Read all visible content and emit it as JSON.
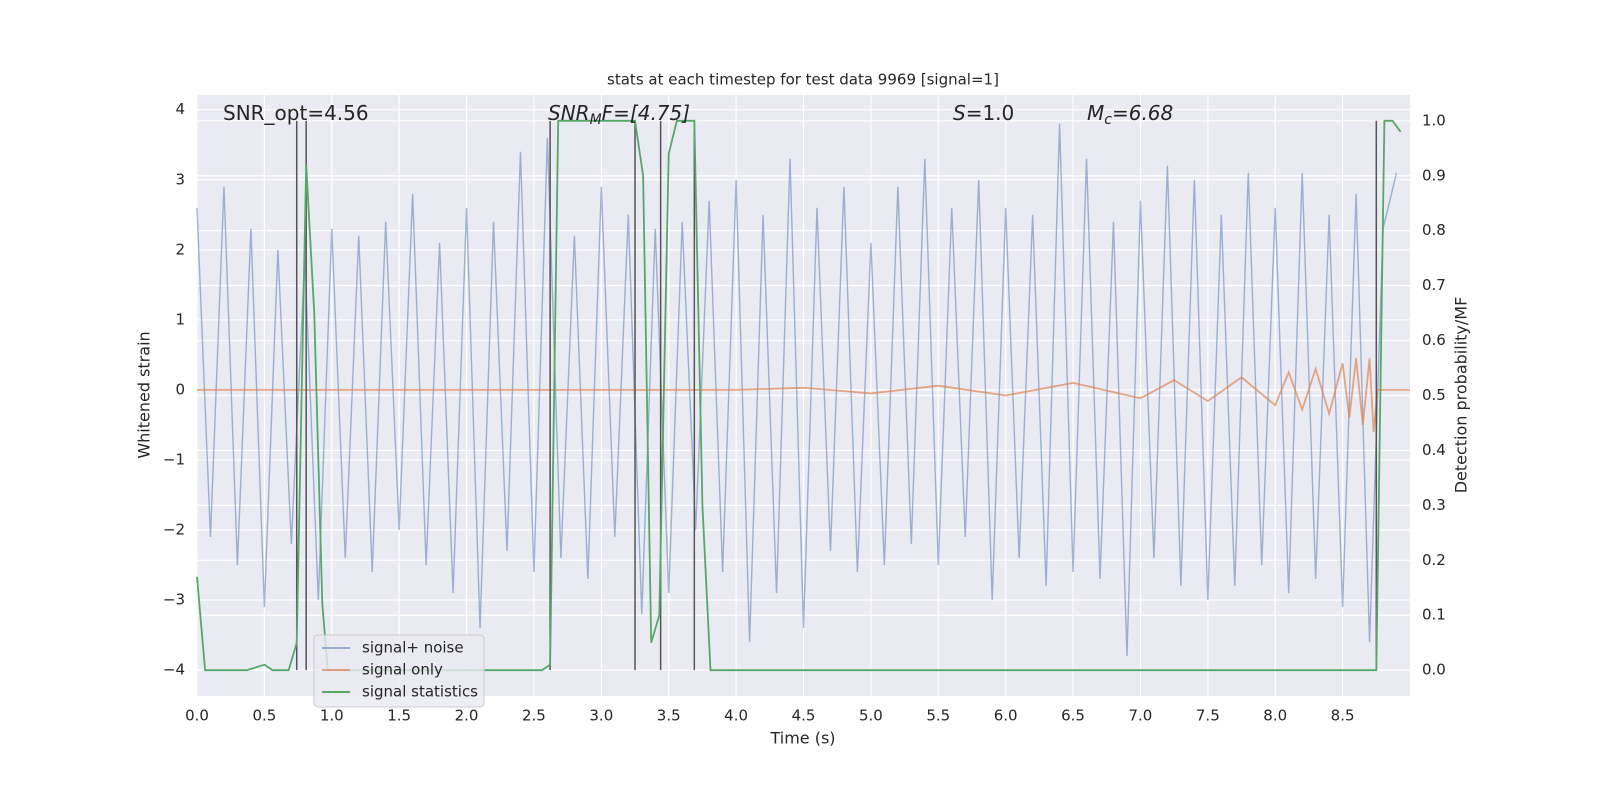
{
  "chart_data": {
    "type": "line",
    "title": "stats at each timestep for test data 9969 [signal=1]",
    "xlabel": "Time (s)",
    "ylabel": "Whitened strain",
    "y2label": "Detection probability/MF",
    "xlim": [
      0,
      9.0
    ],
    "ylim": [
      -4.37,
      4.21
    ],
    "y2lim": [
      -0.047,
      1.047
    ],
    "grid": true,
    "xticks": [
      {
        "value": 0,
        "label": "0.0"
      },
      {
        "value": 0.5,
        "label": "0.5"
      },
      {
        "value": 1,
        "label": "1.0"
      },
      {
        "value": 1.5,
        "label": "1.5"
      },
      {
        "value": 2,
        "label": "2.0"
      },
      {
        "value": 2.5,
        "label": "2.5"
      },
      {
        "value": 3,
        "label": "3.0"
      },
      {
        "value": 3.5,
        "label": "3.5"
      },
      {
        "value": 4,
        "label": "4.0"
      },
      {
        "value": 4.5,
        "label": "4.5"
      },
      {
        "value": 5,
        "label": "5.0"
      },
      {
        "value": 5.5,
        "label": "5.5"
      },
      {
        "value": 6,
        "label": "6.0"
      },
      {
        "value": 6.5,
        "label": "6.5"
      },
      {
        "value": 7,
        "label": "7.0"
      },
      {
        "value": 7.5,
        "label": "7.5"
      },
      {
        "value": 8,
        "label": "8.0"
      },
      {
        "value": 8.5,
        "label": "8.5"
      }
    ],
    "yticks": [
      {
        "value": -4,
        "label": "−4"
      },
      {
        "value": -3,
        "label": "−3"
      },
      {
        "value": -2,
        "label": "−2"
      },
      {
        "value": -1,
        "label": "−1"
      },
      0,
      1,
      2,
      3,
      4
    ],
    "y2ticks": [
      {
        "value": 0,
        "label": "0.0"
      },
      {
        "value": 0.1,
        "label": "0.1"
      },
      {
        "value": 0.2,
        "label": "0.2"
      },
      {
        "value": 0.3,
        "label": "0.3"
      },
      {
        "value": 0.4,
        "label": "0.4"
      },
      {
        "value": 0.5,
        "label": "0.5"
      },
      {
        "value": 0.6,
        "label": "0.6"
      },
      {
        "value": 0.7,
        "label": "0.7"
      },
      {
        "value": 0.8,
        "label": "0.8"
      },
      {
        "value": 0.9,
        "label": "0.9"
      },
      {
        "value": 1,
        "label": "1.0"
      }
    ],
    "annotations": [
      {
        "base": "SNR_opt=4.56"
      },
      {
        "base": "SNR",
        "sub": "M",
        "rest": "F=[4.75]"
      },
      {
        "base": "S",
        "rest": "=1.0"
      },
      {
        "base": "M",
        "sub": "c",
        "rest": "=6.68"
      }
    ],
    "vertical_lines": [
      0.74,
      0.81,
      2.62,
      3.25,
      3.44,
      3.69,
      8.75
    ],
    "vertical_line_color": "#555555",
    "series": [
      {
        "name": "signal+ noise",
        "color": "#4c72b0",
        "x": [
          0.0,
          0.1,
          0.2,
          0.3,
          0.4,
          0.5,
          0.6,
          0.7,
          0.8,
          0.9,
          1.0,
          1.1,
          1.2,
          1.3,
          1.4,
          1.5,
          1.6,
          1.7,
          1.8,
          1.9,
          2.0,
          2.1,
          2.2,
          2.3,
          2.4,
          2.5,
          2.6,
          2.7,
          2.8,
          2.9,
          3.0,
          3.1,
          3.2,
          3.3,
          3.4,
          3.5,
          3.6,
          3.7,
          3.8,
          3.9,
          4.0,
          4.1,
          4.2,
          4.3,
          4.4,
          4.5,
          4.6,
          4.7,
          4.8,
          4.9,
          5.0,
          5.1,
          5.2,
          5.3,
          5.4,
          5.5,
          5.6,
          5.7,
          5.8,
          5.9,
          6.0,
          6.1,
          6.2,
          6.3,
          6.4,
          6.5,
          6.6,
          6.7,
          6.8,
          6.9,
          7.0,
          7.1,
          7.2,
          7.3,
          7.4,
          7.5,
          7.6,
          7.7,
          7.8,
          7.9,
          8.0,
          8.1,
          8.2,
          8.3,
          8.4,
          8.5,
          8.6,
          8.7,
          8.8,
          8.9
        ],
        "values": [
          2.6,
          -2.1,
          2.9,
          -2.5,
          2.3,
          -3.1,
          2.0,
          -2.2,
          1.9,
          -3.0,
          2.3,
          -2.4,
          2.2,
          -2.6,
          2.4,
          -2.0,
          2.8,
          -2.5,
          2.1,
          -2.9,
          2.6,
          -3.4,
          2.4,
          -2.3,
          3.4,
          -2.6,
          3.6,
          -2.4,
          2.2,
          -2.7,
          2.9,
          -2.1,
          2.5,
          -3.2,
          2.3,
          -2.9,
          2.4,
          -2.0,
          2.7,
          -2.6,
          3.0,
          -3.6,
          2.5,
          -2.9,
          3.3,
          -3.4,
          2.6,
          -2.3,
          2.9,
          -2.6,
          2.1,
          -2.5,
          2.9,
          -2.2,
          3.3,
          -2.5,
          2.6,
          -2.1,
          3.0,
          -3.0,
          2.6,
          -2.4,
          2.5,
          -2.8,
          3.8,
          -2.6,
          3.3,
          -2.7,
          2.4,
          -3.8,
          2.7,
          -2.4,
          3.2,
          -2.8,
          3.0,
          -3.0,
          2.5,
          -2.8,
          3.1,
          -2.5,
          2.6,
          -2.9,
          3.1,
          -2.7,
          2.5,
          -3.1,
          2.8,
          -3.6,
          2.3,
          3.1
        ]
      },
      {
        "name": "signal only",
        "color": "#dd8452",
        "x": [
          0,
          4.0,
          4.5,
          5.0,
          5.5,
          6.0,
          6.5,
          7.0,
          7.25,
          7.5,
          7.75,
          8.0,
          8.1,
          8.2,
          8.3,
          8.4,
          8.5,
          8.55,
          8.6,
          8.65,
          8.7,
          8.73,
          8.76,
          9.0
        ],
        "values": [
          0,
          0,
          0.03,
          -0.05,
          0.06,
          -0.08,
          0.1,
          -0.12,
          0.14,
          -0.16,
          0.18,
          -0.22,
          0.25,
          -0.28,
          0.3,
          -0.34,
          0.38,
          -0.4,
          0.45,
          -0.5,
          0.45,
          -0.6,
          0,
          0
        ]
      },
      {
        "name": "signal statistics",
        "color": "#55a868",
        "axis": "y2",
        "x": [
          0.0,
          0.06,
          0.12,
          0.37,
          0.5,
          0.56,
          0.68,
          0.74,
          0.81,
          0.87,
          0.93,
          0.97,
          2.56,
          2.62,
          2.68,
          3.25,
          3.31,
          3.37,
          3.43,
          3.5,
          3.56,
          3.69,
          3.75,
          3.81,
          8.75,
          8.81,
          8.87,
          8.93
        ],
        "values": [
          0.17,
          0.0,
          0.0,
          0.0,
          0.01,
          0.0,
          0.0,
          0.05,
          0.92,
          0.65,
          0.12,
          0.0,
          0.0,
          0.01,
          1.0,
          1.0,
          0.9,
          0.05,
          0.1,
          0.94,
          1.0,
          1.0,
          0.3,
          0.0,
          0.0,
          1.0,
          1.0,
          0.98
        ]
      }
    ]
  }
}
